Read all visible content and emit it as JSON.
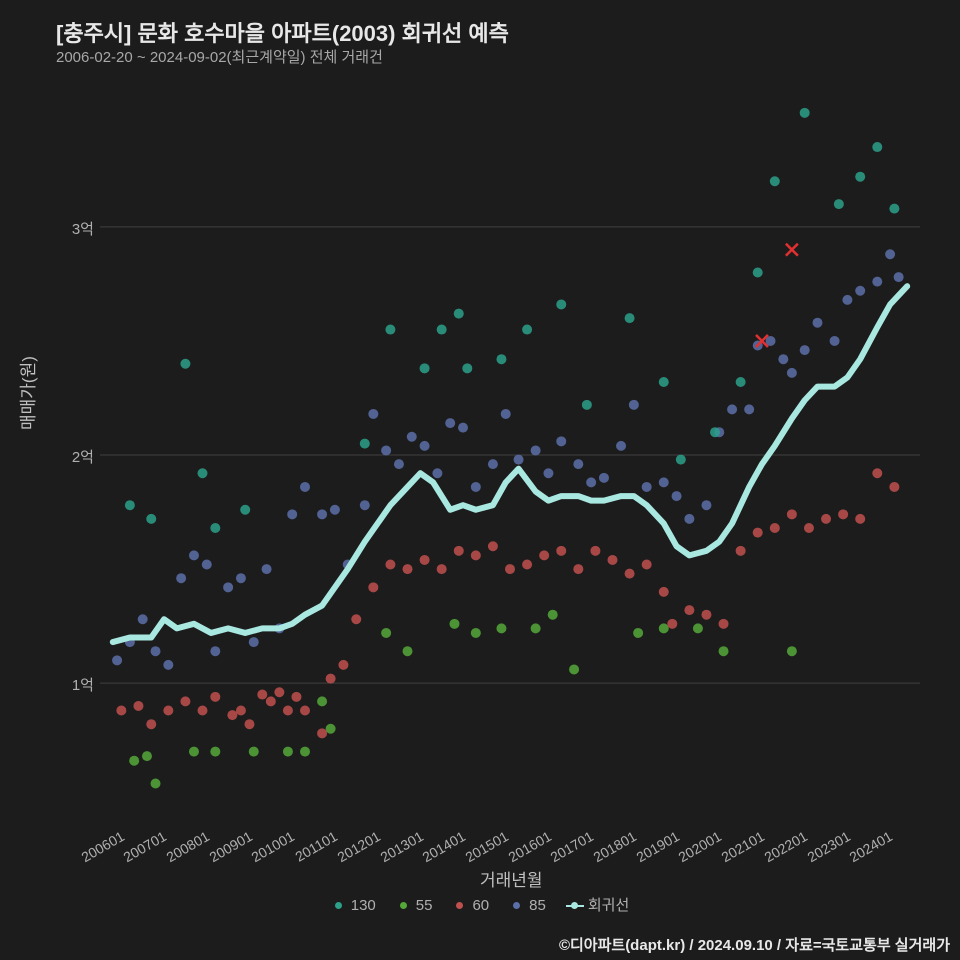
{
  "title": "[충주시] 문화 호수마을 아파트(2003) 회귀선 예측",
  "subtitle": "2006-02-20 ~ 2024-09-02(최근계약일) 전체 거래건",
  "ylabel": "매매가(원)",
  "xlabel": "거래년월",
  "footer": "©디아파트(dapt.kr) / 2024.09.10 / 자료=국토교통부 실거래가",
  "background_color": "#1c1c1c",
  "grid_color": "#888888",
  "grid_opacity": 0.35,
  "text_color": "#c0c0c0",
  "xlim": [
    2005.8,
    2025.0
  ],
  "ylim": [
    0.4,
    3.6
  ],
  "xticks": [
    "200601",
    "200701",
    "200801",
    "200901",
    "201001",
    "201101",
    "201201",
    "201301",
    "201401",
    "201501",
    "201601",
    "201701",
    "201801",
    "201901",
    "202001",
    "202101",
    "202201",
    "202301",
    "202401"
  ],
  "xtick_years": [
    2006,
    2007,
    2008,
    2009,
    2010,
    2011,
    2012,
    2013,
    2014,
    2015,
    2016,
    2017,
    2018,
    2019,
    2020,
    2021,
    2022,
    2023,
    2024
  ],
  "yticks": [
    {
      "v": 1.0,
      "label": "1억"
    },
    {
      "v": 2.0,
      "label": "2억"
    },
    {
      "v": 3.0,
      "label": "3억"
    }
  ],
  "series": {
    "130": {
      "color": "#2ca089",
      "points": [
        [
          2006.5,
          1.78
        ],
        [
          2007.0,
          1.72
        ],
        [
          2007.8,
          2.4
        ],
        [
          2008.2,
          1.92
        ],
        [
          2008.5,
          1.68
        ],
        [
          2009.2,
          1.76
        ],
        [
          2012.0,
          2.05
        ],
        [
          2012.6,
          2.55
        ],
        [
          2013.4,
          2.38
        ],
        [
          2013.8,
          2.55
        ],
        [
          2014.2,
          2.62
        ],
        [
          2014.4,
          2.38
        ],
        [
          2015.2,
          2.42
        ],
        [
          2015.8,
          2.55
        ],
        [
          2016.6,
          2.66
        ],
        [
          2017.2,
          2.22
        ],
        [
          2018.2,
          2.6
        ],
        [
          2019.0,
          2.32
        ],
        [
          2019.4,
          1.98
        ],
        [
          2020.2,
          2.1
        ],
        [
          2020.8,
          2.32
        ],
        [
          2021.2,
          2.8
        ],
        [
          2021.6,
          3.2
        ],
        [
          2022.3,
          3.5
        ],
        [
          2023.1,
          3.1
        ],
        [
          2023.6,
          3.22
        ],
        [
          2024.0,
          3.35
        ],
        [
          2024.4,
          3.08
        ]
      ]
    },
    "55": {
      "color": "#54a838",
      "points": [
        [
          2006.6,
          0.66
        ],
        [
          2006.9,
          0.68
        ],
        [
          2007.1,
          0.56
        ],
        [
          2008.0,
          0.7
        ],
        [
          2008.5,
          0.7
        ],
        [
          2009.4,
          0.7
        ],
        [
          2010.2,
          0.7
        ],
        [
          2010.6,
          0.7
        ],
        [
          2011.0,
          0.92
        ],
        [
          2011.2,
          0.8
        ],
        [
          2012.5,
          1.22
        ],
        [
          2013.0,
          1.14
        ],
        [
          2014.1,
          1.26
        ],
        [
          2014.6,
          1.22
        ],
        [
          2015.2,
          1.24
        ],
        [
          2016.0,
          1.24
        ],
        [
          2016.4,
          1.3
        ],
        [
          2016.9,
          1.06
        ],
        [
          2018.4,
          1.22
        ],
        [
          2019.0,
          1.24
        ],
        [
          2019.8,
          1.24
        ],
        [
          2020.4,
          1.14
        ],
        [
          2022.0,
          1.14
        ]
      ]
    },
    "60": {
      "color": "#c0504d",
      "points": [
        [
          2006.3,
          0.88
        ],
        [
          2006.7,
          0.9
        ],
        [
          2007.0,
          0.82
        ],
        [
          2007.4,
          0.88
        ],
        [
          2007.8,
          0.92
        ],
        [
          2008.2,
          0.88
        ],
        [
          2008.5,
          0.94
        ],
        [
          2008.9,
          0.86
        ],
        [
          2009.1,
          0.88
        ],
        [
          2009.3,
          0.82
        ],
        [
          2009.6,
          0.95
        ],
        [
          2009.8,
          0.92
        ],
        [
          2010.0,
          0.96
        ],
        [
          2010.2,
          0.88
        ],
        [
          2010.4,
          0.94
        ],
        [
          2010.6,
          0.88
        ],
        [
          2011.0,
          0.78
        ],
        [
          2011.2,
          1.02
        ],
        [
          2011.5,
          1.08
        ],
        [
          2011.8,
          1.28
        ],
        [
          2012.2,
          1.42
        ],
        [
          2012.6,
          1.52
        ],
        [
          2013.0,
          1.5
        ],
        [
          2013.4,
          1.54
        ],
        [
          2013.8,
          1.5
        ],
        [
          2014.2,
          1.58
        ],
        [
          2014.6,
          1.56
        ],
        [
          2015.0,
          1.6
        ],
        [
          2015.4,
          1.5
        ],
        [
          2015.8,
          1.52
        ],
        [
          2016.2,
          1.56
        ],
        [
          2016.6,
          1.58
        ],
        [
          2017.0,
          1.5
        ],
        [
          2017.4,
          1.58
        ],
        [
          2017.8,
          1.54
        ],
        [
          2018.2,
          1.48
        ],
        [
          2018.6,
          1.52
        ],
        [
          2019.0,
          1.4
        ],
        [
          2019.2,
          1.26
        ],
        [
          2019.6,
          1.32
        ],
        [
          2020.0,
          1.3
        ],
        [
          2020.4,
          1.26
        ],
        [
          2020.8,
          1.58
        ],
        [
          2021.2,
          1.66
        ],
        [
          2021.6,
          1.68
        ],
        [
          2022.0,
          1.74
        ],
        [
          2022.4,
          1.68
        ],
        [
          2022.8,
          1.72
        ],
        [
          2023.2,
          1.74
        ],
        [
          2023.6,
          1.72
        ],
        [
          2024.0,
          1.92
        ],
        [
          2024.4,
          1.86
        ]
      ]
    },
    "85": {
      "color": "#5b6fa8",
      "points": [
        [
          2006.2,
          1.1
        ],
        [
          2006.5,
          1.18
        ],
        [
          2006.8,
          1.28
        ],
        [
          2007.1,
          1.14
        ],
        [
          2007.4,
          1.08
        ],
        [
          2007.7,
          1.46
        ],
        [
          2008.0,
          1.56
        ],
        [
          2008.3,
          1.52
        ],
        [
          2008.5,
          1.14
        ],
        [
          2008.8,
          1.42
        ],
        [
          2009.1,
          1.46
        ],
        [
          2009.4,
          1.18
        ],
        [
          2009.7,
          1.5
        ],
        [
          2010.0,
          1.24
        ],
        [
          2010.3,
          1.74
        ],
        [
          2010.6,
          1.86
        ],
        [
          2011.0,
          1.74
        ],
        [
          2011.3,
          1.76
        ],
        [
          2011.6,
          1.52
        ],
        [
          2012.0,
          1.78
        ],
        [
          2012.2,
          2.18
        ],
        [
          2012.5,
          2.02
        ],
        [
          2012.8,
          1.96
        ],
        [
          2013.1,
          2.08
        ],
        [
          2013.4,
          2.04
        ],
        [
          2013.7,
          1.92
        ],
        [
          2014.0,
          2.14
        ],
        [
          2014.3,
          2.12
        ],
        [
          2014.6,
          1.86
        ],
        [
          2015.0,
          1.96
        ],
        [
          2015.3,
          2.18
        ],
        [
          2015.6,
          1.98
        ],
        [
          2016.0,
          2.02
        ],
        [
          2016.3,
          1.92
        ],
        [
          2016.6,
          2.06
        ],
        [
          2017.0,
          1.96
        ],
        [
          2017.3,
          1.88
        ],
        [
          2017.6,
          1.9
        ],
        [
          2018.0,
          2.04
        ],
        [
          2018.3,
          2.22
        ],
        [
          2018.6,
          1.86
        ],
        [
          2019.0,
          1.88
        ],
        [
          2019.3,
          1.82
        ],
        [
          2019.6,
          1.72
        ],
        [
          2020.0,
          1.78
        ],
        [
          2020.3,
          2.1
        ],
        [
          2020.6,
          2.2
        ],
        [
          2021.0,
          2.2
        ],
        [
          2021.2,
          2.48
        ],
        [
          2021.5,
          2.5
        ],
        [
          2021.8,
          2.42
        ],
        [
          2022.0,
          2.36
        ],
        [
          2022.3,
          2.46
        ],
        [
          2022.6,
          2.58
        ],
        [
          2023.0,
          2.5
        ],
        [
          2023.3,
          2.68
        ],
        [
          2023.6,
          2.72
        ],
        [
          2024.0,
          2.76
        ],
        [
          2024.3,
          2.88
        ],
        [
          2024.5,
          2.78
        ]
      ]
    }
  },
  "cross_marks": {
    "color": "#e03030",
    "size": 12,
    "points": [
      [
        2021.3,
        2.5
      ],
      [
        2022.0,
        2.9
      ]
    ]
  },
  "regression": {
    "color": "#a8e8e0",
    "width": 6,
    "points": [
      [
        2006.1,
        1.18
      ],
      [
        2006.5,
        1.2
      ],
      [
        2007.0,
        1.2
      ],
      [
        2007.3,
        1.28
      ],
      [
        2007.6,
        1.24
      ],
      [
        2008.0,
        1.26
      ],
      [
        2008.4,
        1.22
      ],
      [
        2008.8,
        1.24
      ],
      [
        2009.2,
        1.22
      ],
      [
        2009.6,
        1.24
      ],
      [
        2010.0,
        1.24
      ],
      [
        2010.3,
        1.26
      ],
      [
        2010.6,
        1.3
      ],
      [
        2011.0,
        1.34
      ],
      [
        2011.3,
        1.42
      ],
      [
        2011.6,
        1.5
      ],
      [
        2012.0,
        1.62
      ],
      [
        2012.3,
        1.7
      ],
      [
        2012.6,
        1.78
      ],
      [
        2013.0,
        1.86
      ],
      [
        2013.3,
        1.92
      ],
      [
        2013.6,
        1.88
      ],
      [
        2014.0,
        1.76
      ],
      [
        2014.3,
        1.78
      ],
      [
        2014.6,
        1.76
      ],
      [
        2015.0,
        1.78
      ],
      [
        2015.3,
        1.88
      ],
      [
        2015.6,
        1.94
      ],
      [
        2016.0,
        1.84
      ],
      [
        2016.3,
        1.8
      ],
      [
        2016.6,
        1.82
      ],
      [
        2017.0,
        1.82
      ],
      [
        2017.3,
        1.8
      ],
      [
        2017.6,
        1.8
      ],
      [
        2018.0,
        1.82
      ],
      [
        2018.3,
        1.82
      ],
      [
        2018.6,
        1.78
      ],
      [
        2019.0,
        1.7
      ],
      [
        2019.3,
        1.6
      ],
      [
        2019.6,
        1.56
      ],
      [
        2020.0,
        1.58
      ],
      [
        2020.3,
        1.62
      ],
      [
        2020.6,
        1.7
      ],
      [
        2021.0,
        1.86
      ],
      [
        2021.3,
        1.96
      ],
      [
        2021.6,
        2.04
      ],
      [
        2022.0,
        2.16
      ],
      [
        2022.3,
        2.24
      ],
      [
        2022.6,
        2.3
      ],
      [
        2023.0,
        2.3
      ],
      [
        2023.3,
        2.34
      ],
      [
        2023.6,
        2.42
      ],
      [
        2024.0,
        2.56
      ],
      [
        2024.3,
        2.66
      ],
      [
        2024.5,
        2.7
      ],
      [
        2024.7,
        2.74
      ]
    ]
  },
  "legend": [
    {
      "label": "130",
      "color": "#2ca089",
      "type": "dot"
    },
    {
      "label": "55",
      "color": "#54a838",
      "type": "dot"
    },
    {
      "label": "60",
      "color": "#c0504d",
      "type": "dot"
    },
    {
      "label": "85",
      "color": "#5b6fa8",
      "type": "dot"
    },
    {
      "label": "회귀선",
      "color": "#a8e8e0",
      "type": "reg"
    }
  ],
  "title_fontsize": 22,
  "subtitle_fontsize": 15,
  "axis_label_fontsize": 17,
  "tick_fontsize": 15,
  "legend_fontsize": 15,
  "footer_fontsize": 15,
  "marker_radius": 5,
  "marker_opacity": 0.85
}
